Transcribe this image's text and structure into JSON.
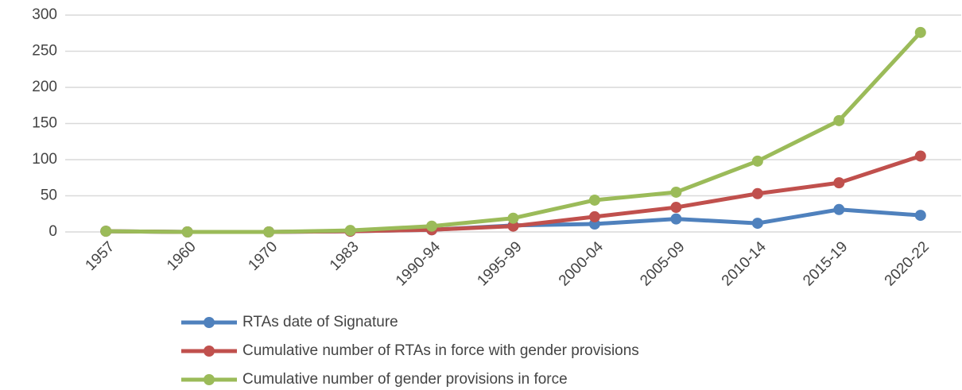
{
  "chart_data": {
    "type": "line",
    "categories": [
      "1957",
      "1960",
      "1970",
      "1983",
      "1990-94",
      "1995-99",
      "2000-04",
      "2005-09",
      "2010-14",
      "2015-19",
      "2020-22"
    ],
    "series": [
      {
        "name": "RTAs date of  Signature",
        "color": "#4f81bd",
        "values": [
          1,
          0,
          0,
          1,
          3,
          9,
          11,
          18,
          12,
          31,
          23
        ]
      },
      {
        "name": "Cumulative number of RTAs in force with gender provisions",
        "color": "#c0504d",
        "values": [
          1,
          0,
          0,
          1,
          3,
          8,
          21,
          34,
          53,
          68,
          105
        ]
      },
      {
        "name": "Cumulative number of gender provisions in force",
        "color": "#9bbb59",
        "values": [
          1,
          0,
          0,
          2,
          8,
          19,
          44,
          55,
          98,
          154,
          276
        ]
      }
    ],
    "ylim": [
      0,
      300
    ],
    "yticks": [
      0,
      50,
      100,
      150,
      200,
      250,
      300
    ],
    "grid": true
  }
}
